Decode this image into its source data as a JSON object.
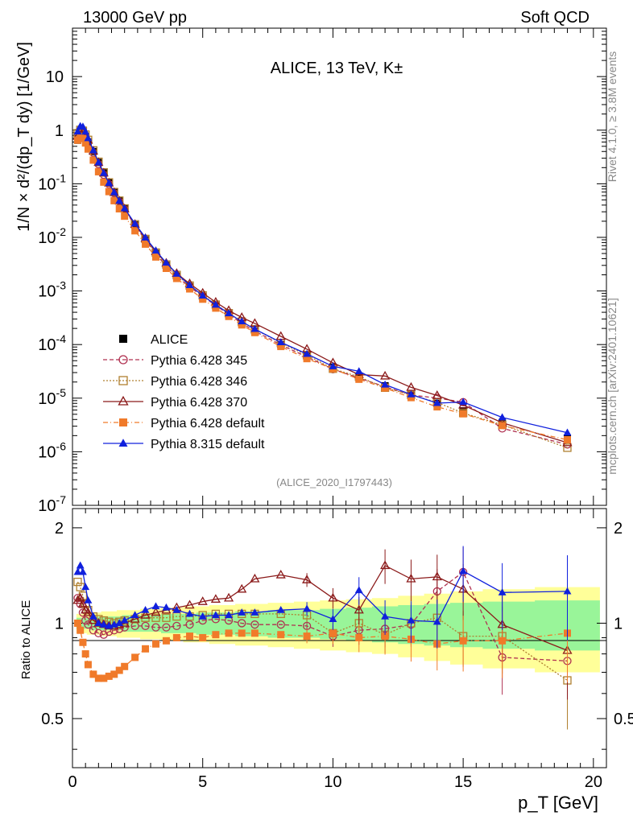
{
  "header": {
    "left": "13000 GeV pp",
    "right": "Soft QCD"
  },
  "side": {
    "rivet": "Rivet 4.1.0, ≥ 3.8M events",
    "mcplots": "mcplots.cern.ch [arXiv:2401.10621]"
  },
  "chart_data": {
    "type": "line",
    "title": "ALICE, 13 TeV, K±",
    "analysis_id": "(ALICE_2020_I1797443)",
    "xlabel": "p_T [GeV]",
    "ylabel": "1/N × d²/(dp_T dy) [1/GeV]",
    "ratio_ylabel": "Ratio to ALICE",
    "xlim": [
      0,
      20.5
    ],
    "ylim_main": [
      1e-07,
      80
    ],
    "ylim_ratio": [
      0.35,
      2.3
    ],
    "x_ticks": [
      0,
      5,
      10,
      15,
      20
    ],
    "x_tick_labels": [
      "0",
      "5",
      "10",
      "15",
      "20"
    ],
    "y_ticks_main": [
      1e-07,
      1e-06,
      1e-05,
      0.0001,
      0.001,
      0.01,
      0.1,
      1,
      10
    ],
    "y_tick_labels_main": [
      "10^-7",
      "10^-6",
      "10^-5",
      "10^-4",
      "10^-3",
      "10^-2",
      "10^-1",
      "1",
      "10"
    ],
    "y_ticks_ratio": [
      0.5,
      1,
      2
    ],
    "y_tick_labels_ratio": [
      "0.5",
      "1",
      "2"
    ],
    "x": [
      0.2,
      0.3,
      0.4,
      0.5,
      0.6,
      0.8,
      1.0,
      1.2,
      1.4,
      1.6,
      1.8,
      2.0,
      2.4,
      2.8,
      3.2,
      3.6,
      4.0,
      4.5,
      5.0,
      5.5,
      6.0,
      6.5,
      7.0,
      8.0,
      9.0,
      10.0,
      11.0,
      12.0,
      13.0,
      14.0,
      15.0,
      16.5,
      19.0
    ],
    "alice": [
      0.65,
      0.78,
      0.8,
      0.72,
      0.6,
      0.4,
      0.25,
      0.16,
      0.105,
      0.07,
      0.048,
      0.034,
      0.017,
      0.009,
      0.005,
      0.003,
      0.0019,
      0.0012,
      0.00078,
      0.00052,
      0.00036,
      0.00025,
      0.00018,
      0.0001,
      6e-05,
      3.8e-05,
      2.5e-05,
      1.7e-05,
      1.15e-05,
      8e-06,
      5.8e-06,
      3.5e-06,
      1.8e-06
    ],
    "band_inner": [
      0.04,
      0.04,
      0.04,
      0.04,
      0.04,
      0.05,
      0.05,
      0.05,
      0.05,
      0.05,
      0.05,
      0.06,
      0.06,
      0.06,
      0.06,
      0.07,
      0.07,
      0.07,
      0.08,
      0.08,
      0.08,
      0.09,
      0.09,
      0.1,
      0.1,
      0.11,
      0.12,
      0.13,
      0.14,
      0.15,
      0.16,
      0.17,
      0.18
    ],
    "band_outer": [
      0.07,
      0.07,
      0.07,
      0.07,
      0.08,
      0.08,
      0.08,
      0.09,
      0.09,
      0.09,
      0.1,
      0.1,
      0.1,
      0.11,
      0.11,
      0.12,
      0.12,
      0.13,
      0.13,
      0.14,
      0.14,
      0.15,
      0.15,
      0.16,
      0.17,
      0.18,
      0.19,
      0.2,
      0.22,
      0.24,
      0.26,
      0.28,
      0.3
    ],
    "series": [
      {
        "name": "ALICE",
        "color": "#000000",
        "marker": "square-filled",
        "line": "none"
      },
      {
        "name": "Pythia 6.428 345",
        "color": "#b03050",
        "marker": "circle-open",
        "line": "dashed",
        "ratio": [
          1.2,
          1.15,
          1.08,
          1.02,
          0.99,
          0.95,
          0.93,
          0.92,
          0.94,
          0.95,
          0.96,
          0.97,
          0.98,
          0.98,
          0.97,
          0.97,
          0.98,
          0.99,
          1.02,
          1.03,
          1.02,
          1.0,
          0.99,
          0.99,
          0.98,
          0.91,
          0.95,
          0.96,
          0.99,
          1.26,
          1.45,
          0.78,
          0.76
        ]
      },
      {
        "name": "Pythia 6.428 346",
        "color": "#b08030",
        "marker": "square-open",
        "line": "dotted",
        "ratio": [
          1.35,
          1.3,
          1.22,
          1.15,
          1.1,
          1.05,
          1.03,
          1.02,
          1.01,
          1.0,
          1.01,
          1.02,
          1.03,
          1.04,
          1.04,
          1.04,
          1.05,
          1.05,
          1.06,
          1.07,
          1.07,
          1.07,
          1.07,
          1.07,
          1.06,
          0.93,
          1.0,
          0.92,
          1.0,
          1.04,
          0.91,
          0.91,
          0.66
        ]
      },
      {
        "name": "Pythia 6.428 370",
        "color": "#8b1a1a",
        "marker": "triangle-open",
        "line": "solid",
        "ratio": [
          1.18,
          1.2,
          1.15,
          1.1,
          1.08,
          1.02,
          1.0,
          0.99,
          0.98,
          0.98,
          0.99,
          1.0,
          1.03,
          1.06,
          1.08,
          1.1,
          1.12,
          1.14,
          1.17,
          1.19,
          1.2,
          1.28,
          1.38,
          1.42,
          1.37,
          1.2,
          1.1,
          1.52,
          1.38,
          1.4,
          1.28,
          0.99,
          0.82
        ]
      },
      {
        "name": "Pythia 6.428 default",
        "color": "#f07a2a",
        "marker": "square-filled",
        "line": "dashdot",
        "ratio": [
          1.0,
          0.95,
          0.87,
          0.8,
          0.74,
          0.69,
          0.67,
          0.67,
          0.68,
          0.69,
          0.71,
          0.73,
          0.78,
          0.83,
          0.86,
          0.88,
          0.9,
          0.91,
          0.9,
          0.92,
          0.93,
          0.93,
          0.93,
          0.92,
          0.91,
          0.93,
          0.9,
          0.91,
          0.89,
          0.86,
          0.88,
          0.88,
          0.93
        ]
      },
      {
        "name": "Pythia 8.315 default",
        "color": "#1020dd",
        "marker": "triangle-filled",
        "line": "solid",
        "ratio": [
          1.45,
          1.52,
          1.45,
          1.3,
          1.18,
          1.05,
          1.0,
          0.99,
          0.98,
          0.99,
          1.0,
          1.02,
          1.06,
          1.1,
          1.13,
          1.12,
          1.1,
          1.07,
          1.05,
          1.06,
          1.06,
          1.08,
          1.08,
          1.1,
          1.11,
          1.03,
          1.27,
          1.05,
          1.02,
          1.01,
          1.46,
          1.25,
          1.26
        ]
      }
    ]
  }
}
